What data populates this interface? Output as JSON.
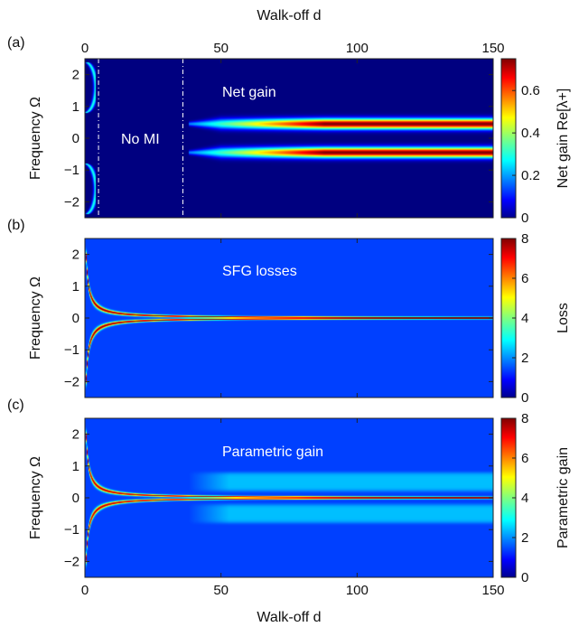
{
  "chart_data": [
    {
      "type": "heatmap",
      "panel_label": "(a)",
      "top_xlabel": "Walk-off d",
      "xlabel": "",
      "ylabel": "Frequency Ω",
      "xlim": [
        0,
        150
      ],
      "ylim": [
        -2.5,
        2.5
      ],
      "xticks": [
        0,
        50,
        100,
        150
      ],
      "yticks": [
        -2,
        -1,
        0,
        1,
        2
      ],
      "show_xtick_labels_top": true,
      "show_xtick_labels_bottom": false,
      "colorbar": {
        "label": "Net gain Re[λ+]",
        "lim": [
          0,
          0.75
        ],
        "ticks": [
          0,
          0.2,
          0.4,
          0.6
        ]
      },
      "annotations": [
        {
          "text": "Net gain",
          "x": 56,
          "y": 1.7
        },
        {
          "text": "No MI",
          "x": 22,
          "y": 0.0
        }
      ],
      "boundary_lines_x": [
        5,
        36
      ],
      "features": {
        "gain_bands": {
          "onset_d": 38,
          "center_freq": [
            0.45,
            -0.45
          ],
          "max_value": 0.75
        },
        "low_d_arcs": {
          "d_range": [
            0,
            4
          ],
          "freq_range": [
            0.8,
            2.4
          ],
          "value": 0.3
        }
      }
    },
    {
      "type": "heatmap",
      "panel_label": "(b)",
      "xlabel": "",
      "ylabel": "Frequency Ω",
      "xlim": [
        0,
        150
      ],
      "ylim": [
        -2.5,
        2.5
      ],
      "xticks": [
        0,
        50,
        100,
        150
      ],
      "yticks": [
        -2,
        -1,
        0,
        1,
        2
      ],
      "show_xtick_labels_top": false,
      "show_xtick_labels_bottom": false,
      "colorbar": {
        "label": "Loss",
        "lim": [
          0,
          8
        ],
        "ticks": [
          0,
          2,
          4,
          6,
          8
        ]
      },
      "annotations": [
        {
          "text": "SFG losses",
          "x": 56,
          "y": 1.7
        }
      ],
      "features": {
        "background_value": 1.5,
        "resonance_curve": "Omega = ±k/d",
        "peak_value": 8
      }
    },
    {
      "type": "heatmap",
      "panel_label": "(c)",
      "xlabel": "Walk-off d",
      "ylabel": "Frequency Ω",
      "xlim": [
        0,
        150
      ],
      "ylim": [
        -2.5,
        2.5
      ],
      "xticks": [
        0,
        50,
        100,
        150
      ],
      "yticks": [
        -2,
        -1,
        0,
        1,
        2
      ],
      "show_xtick_labels_top": false,
      "show_xtick_labels_bottom": true,
      "colorbar": {
        "label": "Parametric gain",
        "lim": [
          0,
          8
        ],
        "ticks": [
          0,
          2,
          4,
          6,
          8
        ]
      },
      "annotations": [
        {
          "text": "Parametric gain",
          "x": 56,
          "y": 1.7
        }
      ],
      "features": {
        "background_value": 1.5,
        "resonance_curve": "Omega = ±k/d",
        "plateau_bands": {
          "onset_d": 38,
          "freq_range": [
            0.2,
            0.8
          ],
          "value": 2.5
        }
      }
    }
  ]
}
